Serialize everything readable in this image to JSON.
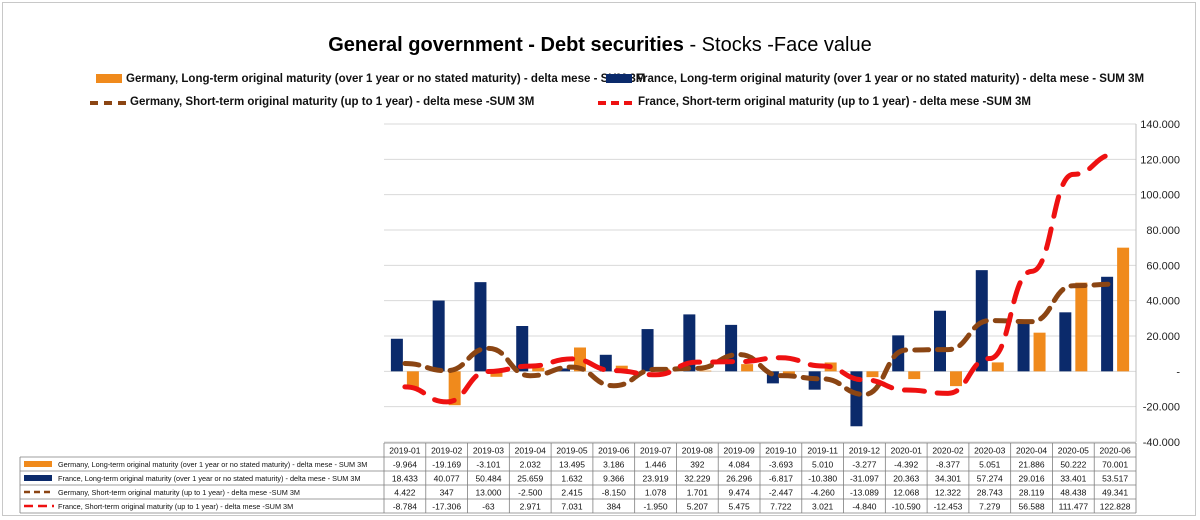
{
  "title": {
    "part_bold": "General government - Debt securities",
    "part_normal": " - Stocks -Face value"
  },
  "colors": {
    "germany_long": "#F08A1C",
    "france_long": "#0B2A6B",
    "germany_short": "#8B4513",
    "france_short": "#EE1111"
  },
  "chart_data": {
    "type": "bar",
    "categories": [
      "2019-01",
      "2019-02",
      "2019-03",
      "2019-04",
      "2019-05",
      "2019-06",
      "2019-07",
      "2019-08",
      "2019-09",
      "2019-10",
      "2019-11",
      "2019-12",
      "2020-01",
      "2020-02",
      "2020-03",
      "2020-04",
      "2020-05",
      "2020-06"
    ],
    "ylim": [
      -40000,
      140000
    ],
    "yticks": [
      -40000,
      -20000,
      0,
      20000,
      40000,
      60000,
      80000,
      100000,
      120000,
      140000
    ],
    "ytick_labels": [
      "-40.000",
      "-20.000",
      "-",
      "20.000",
      "40.000",
      "60.000",
      "80.000",
      "100.000",
      "120.000",
      "140.000"
    ],
    "y_axis_position": "right",
    "grid": true,
    "series": [
      {
        "name": "Germany, Long-term original maturity (over 1 year or no stated maturity) - delta mese - SUM 3M",
        "type": "bar",
        "values": [
          -9964,
          -19169,
          -3101,
          2032,
          13495,
          3186,
          1446,
          392,
          4084,
          -3693,
          5010,
          -3277,
          -4392,
          -8377,
          5051,
          21886,
          50222,
          70001
        ],
        "labels": [
          "-9.964",
          "-19.169",
          "-3.101",
          "2.032",
          "13.495",
          "3.186",
          "1.446",
          "392",
          "4.084",
          "-3.693",
          "5.010",
          "-3.277",
          "-4.392",
          "-8.377",
          "5.051",
          "21.886",
          "50.222",
          "70.001"
        ]
      },
      {
        "name": "France, Long-term original maturity (over 1 year or no stated maturity) - delta mese - SUM 3M",
        "type": "bar",
        "values": [
          18433,
          40077,
          50484,
          25659,
          1632,
          9366,
          23919,
          32229,
          26296,
          -6817,
          -10380,
          -31097,
          20363,
          34301,
          57274,
          29016,
          33401,
          53517
        ],
        "labels": [
          "18.433",
          "40.077",
          "50.484",
          "25.659",
          "1.632",
          "9.366",
          "23.919",
          "32.229",
          "26.296",
          "-6.817",
          "-10.380",
          "-31.097",
          "20.363",
          "34.301",
          "57.274",
          "29.016",
          "33.401",
          "53.517"
        ]
      },
      {
        "name": "Germany, Short-term original maturity (up to 1 year) - delta mese -SUM 3M",
        "type": "line",
        "values": [
          4422,
          347,
          13000,
          -2500,
          2415,
          -8150,
          1078,
          1701,
          9474,
          -2447,
          -4260,
          -13089,
          12068,
          12322,
          28743,
          28119,
          48438,
          49341
        ],
        "labels": [
          "4.422",
          "347",
          "13.000",
          "-2.500",
          "2.415",
          "-8.150",
          "1.078",
          "1.701",
          "9.474",
          "-2.447",
          "-4.260",
          "-13.089",
          "12.068",
          "12.322",
          "28.743",
          "28.119",
          "48.438",
          "49.341"
        ]
      },
      {
        "name": "France, Short-term original maturity (up to 1 year) - delta mese -SUM 3M",
        "type": "line",
        "values": [
          -8784,
          -17306,
          -63,
          2971,
          7031,
          384,
          -1950,
          5207,
          5475,
          7722,
          3021,
          -4840,
          -10590,
          -12453,
          7279,
          56588,
          111477,
          122828
        ],
        "labels": [
          "-8.784",
          "-17.306",
          "-63",
          "2.971",
          "7.031",
          "384",
          "-1.950",
          "5.207",
          "5.475",
          "7.722",
          "3.021",
          "-4.840",
          "-10.590",
          "-12.453",
          "7.279",
          "56.588",
          "111.477",
          "122.828"
        ]
      }
    ],
    "legend_position": "top"
  },
  "legend": {
    "germany_long": "Germany, Long-term original maturity (over 1 year or no stated maturity) - delta mese - SUM 3M",
    "france_long": "France, Long-term original maturity (over 1 year or no stated maturity) - delta mese - SUM 3M",
    "germany_short": "Germany, Short-term original maturity (up to 1 year) - delta mese -SUM 3M",
    "france_short": "France, Short-term original maturity (up to 1 year) - delta mese -SUM 3M"
  }
}
